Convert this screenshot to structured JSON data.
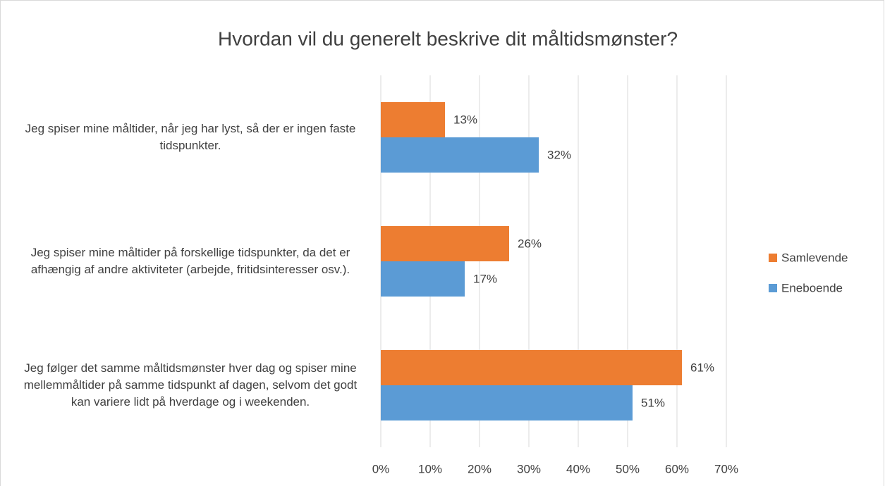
{
  "chart_data": {
    "type": "hbar",
    "title": "Hvordan vil du generelt beskrive dit måltidsmønster?",
    "categories": [
      "Jeg spiser mine måltider, når jeg har lyst, så der er ingen faste tidspunkter.",
      "Jeg spiser mine måltider på forskellige tidspunkter, da det er afhængig af andre aktiviteter (arbejde, fritidsinteresser osv.).",
      "Jeg følger det samme måltidsmønster hver dag og spiser mine mellemmåltider på samme tidspunkt af dagen, selvom det godt kan variere lidt på hverdage og i weekenden."
    ],
    "series": [
      {
        "name": "Samlevende",
        "color": "#ed7d31",
        "values": [
          13,
          26,
          61
        ],
        "value_labels": [
          "13%",
          "26%",
          "61%"
        ]
      },
      {
        "name": "Eneboende",
        "color": "#5b9bd5",
        "values": [
          32,
          17,
          51
        ],
        "value_labels": [
          "32%",
          "17%",
          "51%"
        ]
      }
    ],
    "xlim": [
      0,
      70
    ],
    "xticks": [
      {
        "value": 0,
        "label": "0%"
      },
      {
        "value": 10,
        "label": "10%"
      },
      {
        "value": 20,
        "label": "20%"
      },
      {
        "value": 30,
        "label": "30%"
      },
      {
        "value": 40,
        "label": "40%"
      },
      {
        "value": 50,
        "label": "50%"
      },
      {
        "value": 60,
        "label": "60%"
      },
      {
        "value": 70,
        "label": "70%"
      }
    ],
    "grid": true,
    "legend": "right"
  }
}
